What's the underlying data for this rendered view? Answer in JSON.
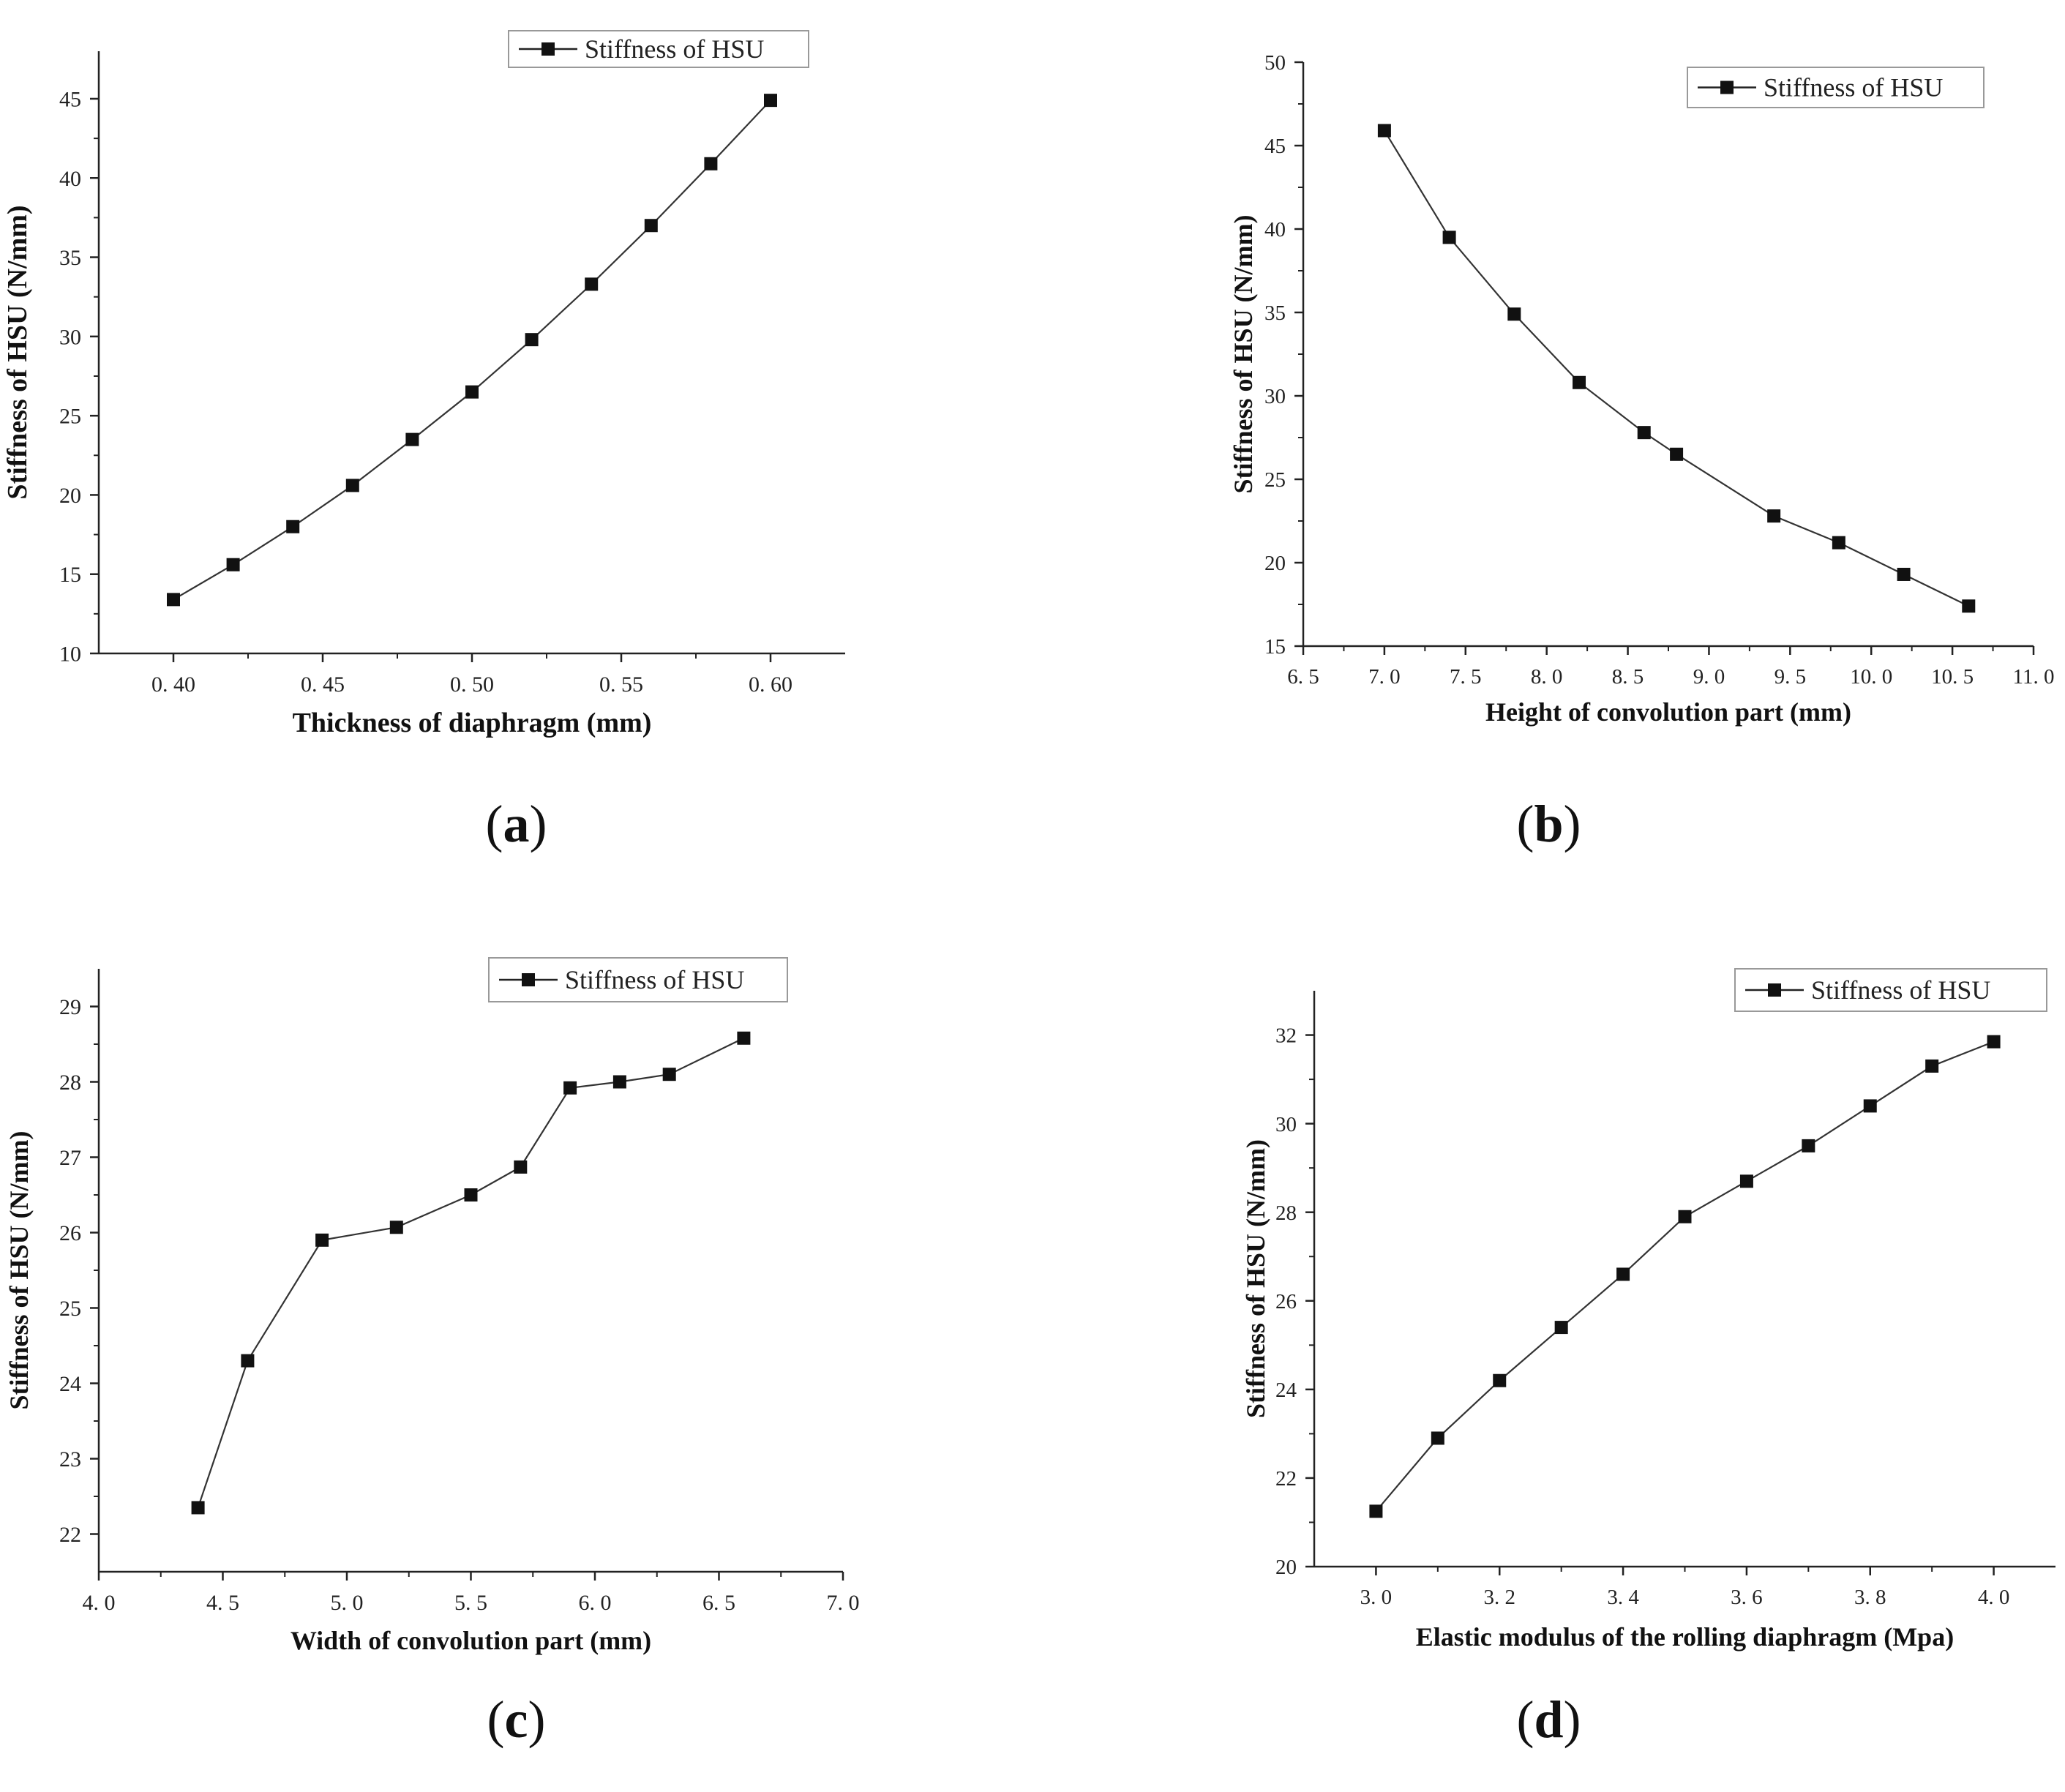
{
  "chart_data": [
    {
      "panel": "(a)",
      "panel_letter": "a",
      "type": "line",
      "xlabel": "Thickness of diaphragm (mm)",
      "ylabel": "Stiffness of HSU (N/mm)",
      "xlim": [
        0.375,
        0.625
      ],
      "ylim": [
        10,
        48
      ],
      "xticks": [
        0.4,
        0.45,
        0.5,
        0.55,
        0.6
      ],
      "xtick_labels": [
        "0. 40",
        "0. 45",
        "0. 50",
        "0. 55",
        "0. 60"
      ],
      "yticks": [
        10,
        15,
        20,
        25,
        30,
        35,
        40,
        45
      ],
      "ytick_labels": [
        "10",
        "15",
        "20",
        "25",
        "30",
        "35",
        "40",
        "45"
      ],
      "legend": "top-right",
      "series": [
        {
          "name": "Stiffness of HSU",
          "x": [
            0.4,
            0.42,
            0.44,
            0.46,
            0.48,
            0.5,
            0.52,
            0.54,
            0.56,
            0.58,
            0.6
          ],
          "y": [
            13.4,
            15.6,
            18.0,
            20.6,
            23.5,
            26.5,
            29.8,
            33.3,
            37.0,
            40.9,
            44.9
          ]
        }
      ]
    },
    {
      "panel": "(b)",
      "panel_letter": "b",
      "type": "line",
      "xlabel": "Height of convolution part (mm)",
      "ylabel": "Stiffness of HSU (N/mm)",
      "xlim": [
        6.5,
        11.0
      ],
      "ylim": [
        15,
        50
      ],
      "xticks": [
        6.5,
        7.0,
        7.5,
        8.0,
        8.5,
        9.0,
        9.5,
        10.0,
        10.5,
        11.0
      ],
      "xtick_labels": [
        "6. 5",
        "7. 0",
        "7. 5",
        "8. 0",
        "8. 5",
        "9. 0",
        "9. 5",
        "10. 0",
        "10. 5",
        "11. 0"
      ],
      "yticks": [
        15,
        20,
        25,
        30,
        35,
        40,
        45,
        50
      ],
      "ytick_labels": [
        "15",
        "20",
        "25",
        "30",
        "35",
        "40",
        "45",
        "50"
      ],
      "legend": "top-right",
      "series": [
        {
          "name": "Stiffness of HSU",
          "x": [
            7.0,
            7.4,
            7.8,
            8.2,
            8.6,
            8.8,
            9.4,
            9.8,
            10.2,
            10.6
          ],
          "y": [
            45.9,
            39.5,
            34.9,
            30.8,
            27.8,
            26.5,
            22.8,
            21.2,
            19.3,
            17.4
          ]
        }
      ]
    },
    {
      "panel": "(c)",
      "panel_letter": "c",
      "type": "line",
      "xlabel": "Width of convolution part (mm)",
      "ylabel": "Stiffness of HSU (N/mm)",
      "xlim": [
        4.0,
        7.0
      ],
      "ylim": [
        21.5,
        29.5
      ],
      "xticks": [
        4.0,
        4.5,
        5.0,
        5.5,
        6.0,
        6.5,
        7.0
      ],
      "xtick_labels": [
        "4. 0",
        "4. 5",
        "5. 0",
        "5. 5",
        "6. 0",
        "6. 5",
        "7. 0"
      ],
      "yticks": [
        22,
        23,
        24,
        25,
        26,
        27,
        28,
        29
      ],
      "ytick_labels": [
        "22",
        "23",
        "24",
        "25",
        "26",
        "27",
        "28",
        "29"
      ],
      "legend": "top-right",
      "series": [
        {
          "name": "Stiffness of HSU",
          "x": [
            4.4,
            4.6,
            4.9,
            5.2,
            5.5,
            5.7,
            5.9,
            6.1,
            6.3,
            6.6
          ],
          "y": [
            22.35,
            24.3,
            25.9,
            26.07,
            26.5,
            26.87,
            27.92,
            28.0,
            28.1,
            28.58
          ]
        }
      ]
    },
    {
      "panel": "(d)",
      "panel_letter": "d",
      "type": "line",
      "xlabel": "Elastic modulus of the rolling diaphragm (Mpa)",
      "ylabel": "Stiffness of HSU (N/mm)",
      "xlim": [
        2.9,
        4.1
      ],
      "ylim": [
        20,
        33
      ],
      "xticks": [
        3.0,
        3.2,
        3.4,
        3.6,
        3.8,
        4.0
      ],
      "xtick_labels": [
        "3. 0",
        "3. 2",
        "3. 4",
        "3. 6",
        "3. 8",
        "4. 0"
      ],
      "yticks": [
        20,
        22,
        24,
        26,
        28,
        30,
        32
      ],
      "ytick_labels": [
        "20",
        "22",
        "24",
        "26",
        "28",
        "30",
        "32"
      ],
      "legend": "top-right",
      "series": [
        {
          "name": "Stiffness of HSU",
          "x": [
            3.0,
            3.1,
            3.2,
            3.3,
            3.4,
            3.5,
            3.6,
            3.7,
            3.8,
            3.9,
            4.0
          ],
          "y": [
            21.25,
            22.9,
            24.2,
            25.4,
            26.6,
            27.9,
            28.7,
            29.5,
            30.4,
            31.3,
            31.85
          ]
        }
      ]
    }
  ]
}
